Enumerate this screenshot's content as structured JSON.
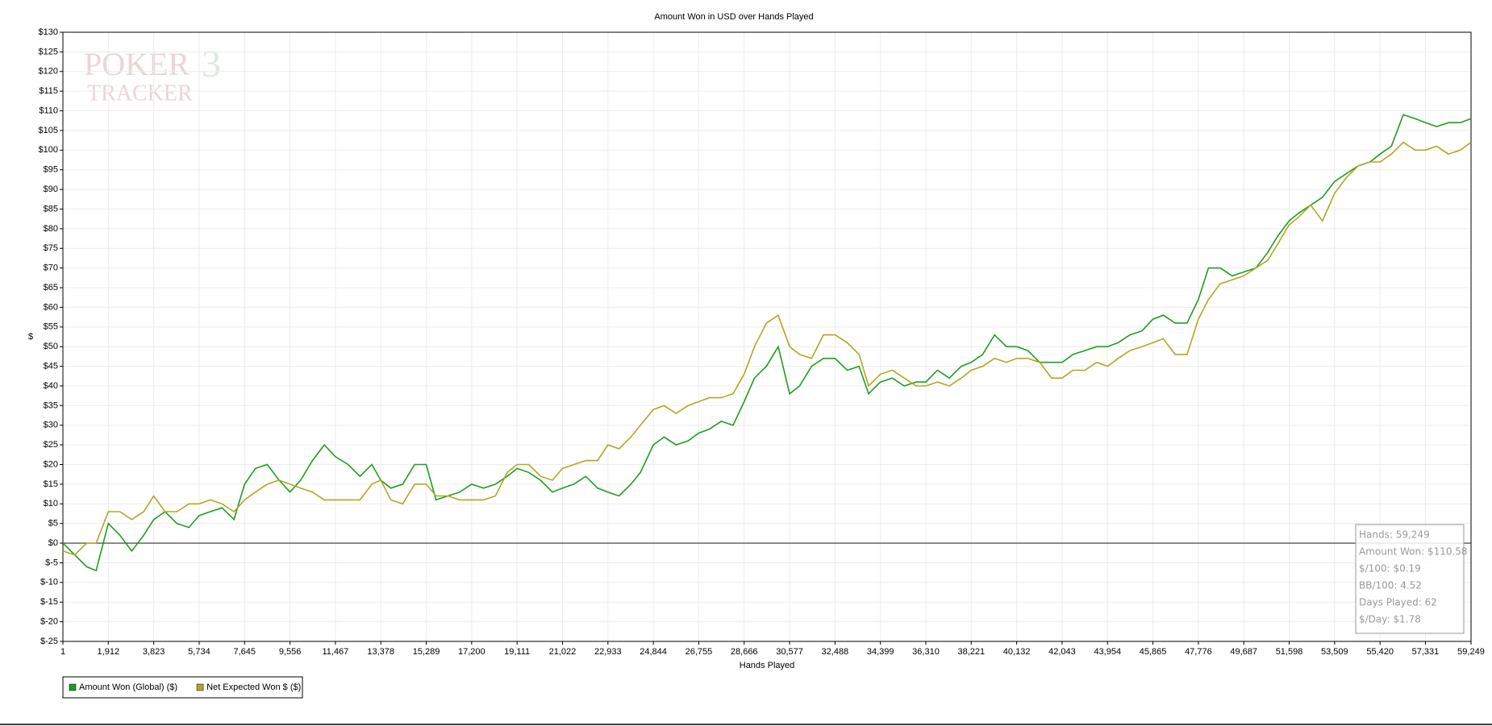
{
  "chart_data": {
    "type": "line",
    "title": "Amount Won in USD over Hands Played",
    "x_label": "Hands Played",
    "y_label": "$",
    "x": [
      1,
      500,
      1000,
      1400,
      1912,
      2400,
      2900,
      3400,
      3823,
      4300,
      4800,
      5300,
      5734,
      6200,
      6700,
      7200,
      7645,
      8100,
      8600,
      9100,
      9556,
      10000,
      10500,
      11000,
      11467,
      12000,
      12500,
      13000,
      13378,
      13800,
      14300,
      14800,
      15289,
      15700,
      16200,
      16700,
      17200,
      17700,
      18200,
      18700,
      19111,
      19600,
      20100,
      20600,
      21022,
      21500,
      22000,
      22500,
      22933,
      23400,
      23900,
      24300,
      24844,
      25300,
      25800,
      26300,
      26755,
      27200,
      27700,
      28200,
      28666,
      29100,
      29600,
      30100,
      30577,
      31000,
      31500,
      32000,
      32488,
      33000,
      33500,
      33900,
      34399,
      34900,
      35400,
      35900,
      36310,
      36800,
      37300,
      37800,
      38221,
      38700,
      39200,
      39700,
      40132,
      40600,
      41100,
      41600,
      42043,
      42500,
      43000,
      43500,
      43954,
      44400,
      44900,
      45400,
      45865,
      46300,
      46800,
      47300,
      47776,
      48200,
      48700,
      49200,
      49687,
      50200,
      50700,
      51100,
      51598,
      52000,
      52500,
      53000,
      53509,
      54000,
      54500,
      55000,
      55420,
      55900,
      56400,
      56900,
      57331,
      57800,
      58300,
      58800,
      59249
    ],
    "series": [
      {
        "name": "Amount Won (Global) ($)",
        "color": "#1e9e1e",
        "values": [
          0,
          -3,
          -6,
          -7,
          5,
          2,
          -2,
          2,
          6,
          8,
          5,
          4,
          7,
          8,
          9,
          6,
          15,
          19,
          20,
          16,
          13,
          16,
          21,
          25,
          22,
          20,
          17,
          20,
          16,
          14,
          15,
          20,
          20,
          11,
          12,
          13,
          15,
          14,
          15,
          17,
          19,
          18,
          16,
          13,
          14,
          15,
          17,
          14,
          13,
          12,
          15,
          18,
          25,
          27,
          25,
          26,
          28,
          29,
          31,
          30,
          36,
          42,
          45,
          50,
          38,
          40,
          45,
          47,
          47,
          44,
          45,
          38,
          41,
          42,
          40,
          41,
          41,
          44,
          42,
          45,
          46,
          48,
          53,
          50,
          50,
          49,
          46,
          46,
          46,
          48,
          49,
          50,
          50,
          51,
          53,
          54,
          57,
          58,
          56,
          56,
          62,
          70,
          70,
          68,
          69,
          70,
          74,
          78,
          82,
          84,
          86,
          88,
          92,
          94,
          96,
          97,
          99,
          101,
          109,
          108,
          107,
          106,
          107,
          107,
          108
        ]
      },
      {
        "name": "Net Expected Won $ ($)",
        "color": "#b0a821",
        "values": [
          -2,
          -3,
          0,
          0,
          8,
          8,
          6,
          8,
          12,
          8,
          8,
          10,
          10,
          11,
          10,
          8,
          11,
          13,
          15,
          16,
          15,
          14,
          13,
          11,
          11,
          11,
          11,
          15,
          16,
          11,
          10,
          15,
          15,
          12,
          12,
          11,
          11,
          11,
          12,
          18,
          20,
          20,
          17,
          16,
          19,
          20,
          21,
          21,
          25,
          24,
          27,
          30,
          34,
          35,
          33,
          35,
          36,
          37,
          37,
          38,
          43,
          50,
          56,
          58,
          50,
          48,
          47,
          53,
          53,
          51,
          48,
          40,
          43,
          44,
          42,
          40,
          40,
          41,
          40,
          42,
          44,
          45,
          47,
          46,
          47,
          47,
          46,
          42,
          42,
          44,
          44,
          46,
          45,
          47,
          49,
          50,
          51,
          52,
          48,
          48,
          57,
          62,
          66,
          67,
          68,
          70,
          72,
          76,
          81,
          83,
          86,
          82,
          89,
          93,
          96,
          97,
          97,
          99,
          102,
          100,
          100,
          101,
          99,
          100,
          102
        ]
      }
    ],
    "xlim": [
      1,
      59249
    ],
    "xticks": [
      1,
      {
        "value": 1912,
        "label": "1,912"
      },
      {
        "value": 3823,
        "label": "3,823"
      },
      {
        "value": 5734,
        "label": "5,734"
      },
      {
        "value": 7645,
        "label": "7,645"
      },
      {
        "value": 9556,
        "label": "9,556"
      },
      {
        "value": 11467,
        "label": "11,467"
      },
      {
        "value": 13378,
        "label": "13,378"
      },
      {
        "value": 15289,
        "label": "15,289"
      },
      {
        "value": 17200,
        "label": "17,200"
      },
      {
        "value": 19111,
        "label": "19,111"
      },
      {
        "value": 21022,
        "label": "21,022"
      },
      {
        "value": 22933,
        "label": "22,933"
      },
      {
        "value": 24844,
        "label": "24,844"
      },
      {
        "value": 26755,
        "label": "26,755"
      },
      {
        "value": 28666,
        "label": "28,666"
      },
      {
        "value": 30577,
        "label": "30,577"
      },
      {
        "value": 32488,
        "label": "32,488"
      },
      {
        "value": 34399,
        "label": "34,399"
      },
      {
        "value": 36310,
        "label": "36,310"
      },
      {
        "value": 38221,
        "label": "38,221"
      },
      {
        "value": 40132,
        "label": "40,132"
      },
      {
        "value": 42043,
        "label": "42,043"
      },
      {
        "value": 43954,
        "label": "43,954"
      },
      {
        "value": 45865,
        "label": "45,865"
      },
      {
        "value": 47776,
        "label": "47,776"
      },
      {
        "value": 49687,
        "label": "49,687"
      },
      {
        "value": 51598,
        "label": "51,598"
      },
      {
        "value": 53509,
        "label": "53,509"
      },
      {
        "value": 55420,
        "label": "55,420"
      },
      {
        "value": 57331,
        "label": "57,331"
      },
      {
        "value": 59249,
        "label": "59,249"
      }
    ],
    "ylim": [
      -25,
      130
    ],
    "yticks": [
      {
        "value": -25,
        "label": "$-25"
      },
      {
        "value": -20,
        "label": "$-20"
      },
      {
        "value": -15,
        "label": "$-15"
      },
      {
        "value": -10,
        "label": "$-10"
      },
      {
        "value": -5,
        "label": "$-5"
      },
      {
        "value": 0,
        "label": "$0"
      },
      {
        "value": 5,
        "label": "$5"
      },
      {
        "value": 10,
        "label": "$10"
      },
      {
        "value": 15,
        "label": "$15"
      },
      {
        "value": 20,
        "label": "$20"
      },
      {
        "value": 25,
        "label": "$25"
      },
      {
        "value": 30,
        "label": "$30"
      },
      {
        "value": 35,
        "label": "$35"
      },
      {
        "value": 40,
        "label": "$40"
      },
      {
        "value": 45,
        "label": "$45"
      },
      {
        "value": 50,
        "label": "$50"
      },
      {
        "value": 55,
        "label": "$55"
      },
      {
        "value": 60,
        "label": "$60"
      },
      {
        "value": 65,
        "label": "$65"
      },
      {
        "value": 70,
        "label": "$70"
      },
      {
        "value": 75,
        "label": "$75"
      },
      {
        "value": 80,
        "label": "$80"
      },
      {
        "value": 85,
        "label": "$85"
      },
      {
        "value": 90,
        "label": "$90"
      },
      {
        "value": 95,
        "label": "$95"
      },
      {
        "value": 100,
        "label": "$100"
      },
      {
        "value": 105,
        "label": "$105"
      },
      {
        "value": 110,
        "label": "$110"
      },
      {
        "value": 115,
        "label": "$115"
      },
      {
        "value": 120,
        "label": "$120"
      },
      {
        "value": 125,
        "label": "$125"
      },
      {
        "value": 130,
        "label": "$130"
      }
    ],
    "grid": true,
    "legend": "bottom-left",
    "stats": [
      "Hands: 59,249",
      "Amount Won: $110.58",
      "$/100: $0.19",
      "BB/100: 4.52",
      "Days Played: 62",
      "$/Day: $1.78"
    ],
    "watermark": {
      "top": "POKER",
      "badge": "3",
      "bottom": "TRACKER"
    }
  }
}
